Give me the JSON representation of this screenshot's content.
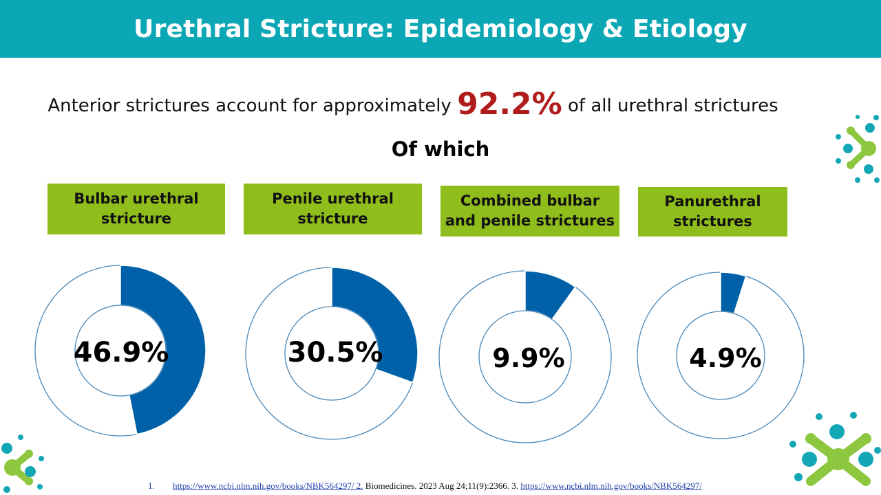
{
  "title": "Urethral Stricture: Epidemiology & Etiology",
  "headline": {
    "prefix": "Anterior strictures account for approximately",
    "highlight": "92.2%",
    "suffix": "of all urethral strictures"
  },
  "subhead": "Of which",
  "categories": [
    "Bulbar urethral stricture",
    "Penile urethral stricture",
    "Combined bulbar and penile strictures",
    "Panurethral strictures"
  ],
  "chart_data": {
    "type": "pie",
    "categories": [
      "Bulbar urethral stricture",
      "Penile urethral stricture",
      "Combined bulbar and penile strictures",
      "Panurethral strictures"
    ],
    "values": [
      46.9,
      30.5,
      9.9,
      4.9
    ],
    "value_labels": [
      "46.9%",
      "30.5%",
      "9.9%",
      "4.9%"
    ]
  },
  "colors": {
    "title_bar": "#0ba7b5",
    "label_box": "#8fbd1c",
    "slice": "#0061a8",
    "highlight": "#b01c1c",
    "decor_teal": "#13a7b6",
    "decor_green": "#8dc63f"
  },
  "references": {
    "num1": "1.",
    "link1": "https://www.ncbi.nlm.nih.gov/books/NBK564297/",
    "num2": " 2.",
    "text2": " Biomedicines. 2023 Aug 24;11(9):2366. 3. ",
    "link3": "https://www.ncbi.nlm.nih.gov/books/NBK564297/"
  }
}
